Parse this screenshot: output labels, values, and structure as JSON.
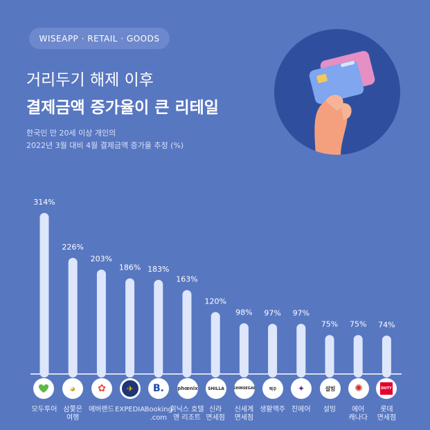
{
  "header": {
    "tag": "WISEAPP · RETAIL · GOODS",
    "title_line1": "거리두기 해제 이후",
    "title_line2": "결제금액 증가율이 큰 리테일",
    "subtitle_line1": "한국인 만 20세 이상 개인의",
    "subtitle_line2": "2022년 3월 대비 4월 결제금액 증가율 추정 (%)"
  },
  "colors": {
    "background": "#5877c1",
    "bar": "#dde6fb",
    "baseline": "#ffffff"
  },
  "icons": [
    "modutour-logo-icon",
    "samjoeun-logo-icon",
    "everland-logo-icon",
    "expedia-logo-icon",
    "booking-logo-icon",
    "phoenix-logo-icon",
    "shilla-logo-icon",
    "shinsegae-logo-icon",
    "lifeandbeauty-logo-icon",
    "jinair-logo-icon",
    "sulbing-logo-icon",
    "aircanada-logo-icon",
    "lotte-dutyfree-logo-icon"
  ],
  "chart_data": {
    "type": "bar",
    "categories": [
      [
        "모두투어"
      ],
      [
        "삼쫓은",
        "여행"
      ],
      [
        "에버랜드"
      ],
      [
        "EXPEDIA"
      ],
      [
        "Booking",
        ".com"
      ],
      [
        "휘닉스 호텔",
        "앤 리조트"
      ],
      [
        "신라",
        "면세점"
      ],
      [
        "신세계",
        "면세점"
      ],
      [
        "생활맥주"
      ],
      [
        "진에어"
      ],
      [
        "설빙"
      ],
      [
        "에어",
        "캐나다"
      ],
      [
        "롯데",
        "면세점"
      ]
    ],
    "values": [
      314,
      226,
      203,
      186,
      183,
      163,
      120,
      98,
      97,
      97,
      75,
      75,
      74
    ],
    "value_labels": [
      "314%",
      "226%",
      "203%",
      "186%",
      "183%",
      "163%",
      "120%",
      "98%",
      "97%",
      "97%",
      "75%",
      "75%",
      "74%"
    ],
    "title": "결제금액 증가율이 큰 리테일",
    "unit": "%",
    "ylim": [
      0,
      314
    ],
    "grid": false
  }
}
